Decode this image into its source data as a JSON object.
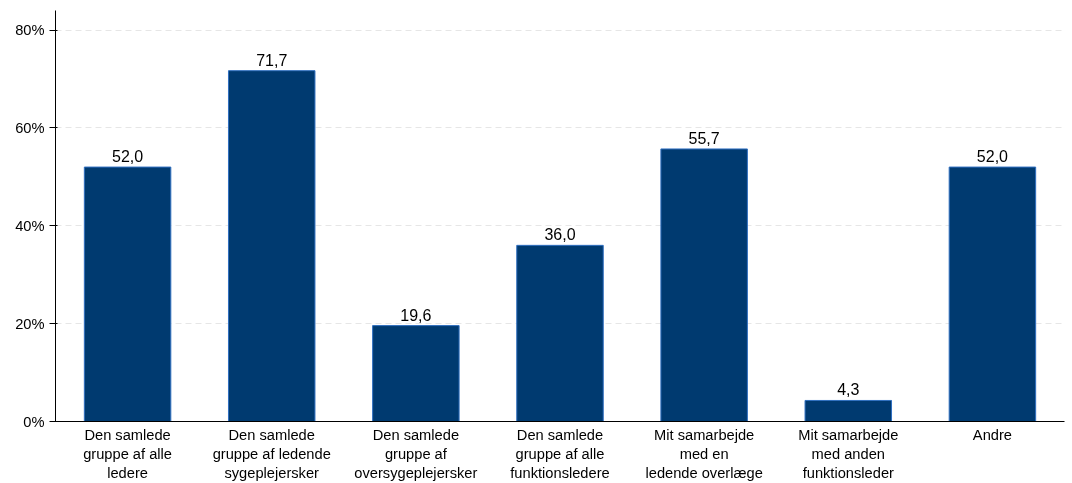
{
  "chart_data": {
    "type": "bar",
    "categories": [
      "Den samlede\ngruppe af alle\nledere",
      "Den samlede\ngruppe af ledende\nsygeplejersker",
      "Den samlede\ngruppe af\noversygeplejersker",
      "Den samlede\ngruppe af alle\nfunktionsledere",
      "Mit samarbejde\nmed en\nledende overlæge",
      "Mit samarbejde\nmed anden\nfunktionsleder",
      "Andre"
    ],
    "values": [
      52.0,
      71.7,
      19.6,
      36.0,
      55.7,
      4.3,
      52.0
    ],
    "value_labels": [
      "52,0",
      "71,7",
      "19,6",
      "36,0",
      "55,7",
      "4,3",
      "52,0"
    ],
    "color": "#003a70",
    "ylim": [
      0,
      84
    ],
    "yticks": [
      {
        "value": 0,
        "label": "0%"
      },
      {
        "value": 20,
        "label": "20%"
      },
      {
        "value": 40,
        "label": "40%"
      },
      {
        "value": 60,
        "label": "60%"
      },
      {
        "value": 80,
        "label": "80%"
      }
    ],
    "grid": "y"
  }
}
